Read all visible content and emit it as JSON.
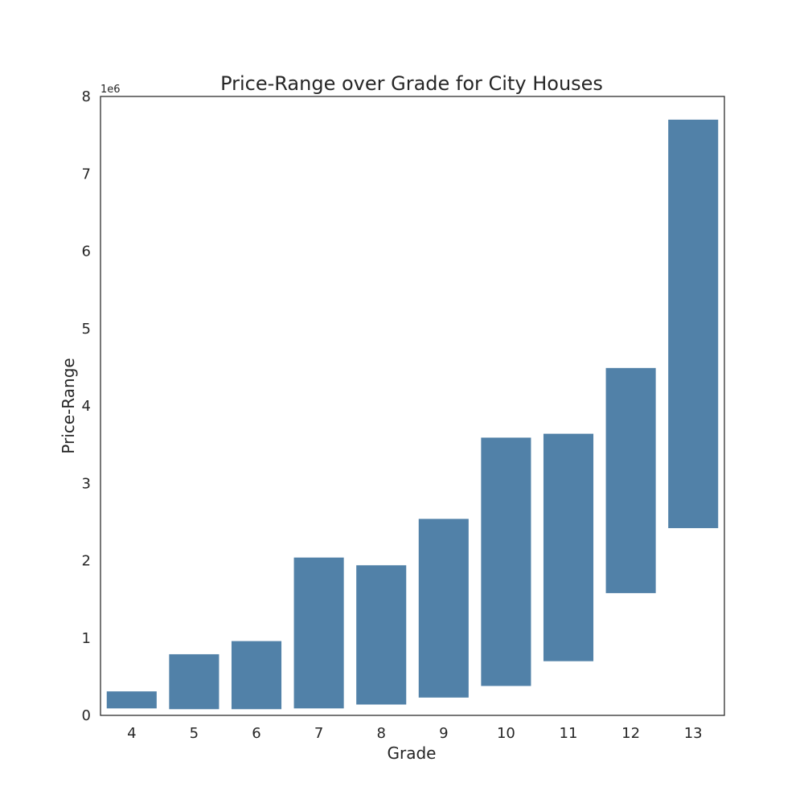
{
  "chart_data": {
    "type": "bar",
    "subtype": "floating-range",
    "title": "Price-Range over Grade for City Houses",
    "xlabel": "Grade",
    "ylabel": "Price-Range",
    "y_offset_label": "1e6",
    "y_scale_factor": 1000000,
    "ylim": [
      0,
      8000000
    ],
    "yticks": [
      0,
      1000000,
      2000000,
      3000000,
      4000000,
      5000000,
      6000000,
      7000000,
      8000000
    ],
    "ytick_labels": [
      "0",
      "1",
      "2",
      "3",
      "4",
      "5",
      "6",
      "7",
      "8"
    ],
    "categories": [
      "4",
      "5",
      "6",
      "7",
      "8",
      "9",
      "10",
      "11",
      "12",
      "13"
    ],
    "series": [
      {
        "low": [
          90000,
          80000,
          80000,
          90000,
          140000,
          230000,
          380000,
          700000,
          1580000,
          2420000
        ],
        "high": [
          310000,
          790000,
          960000,
          2040000,
          1940000,
          2540000,
          3590000,
          3640000,
          4490000,
          7700000
        ],
        "color": "#5181a8"
      }
    ],
    "grid": false,
    "legend": false,
    "colors": {
      "bar": "#5181a8",
      "axes_frame": "#262626",
      "text": "#262626",
      "background": "#ffffff"
    }
  }
}
